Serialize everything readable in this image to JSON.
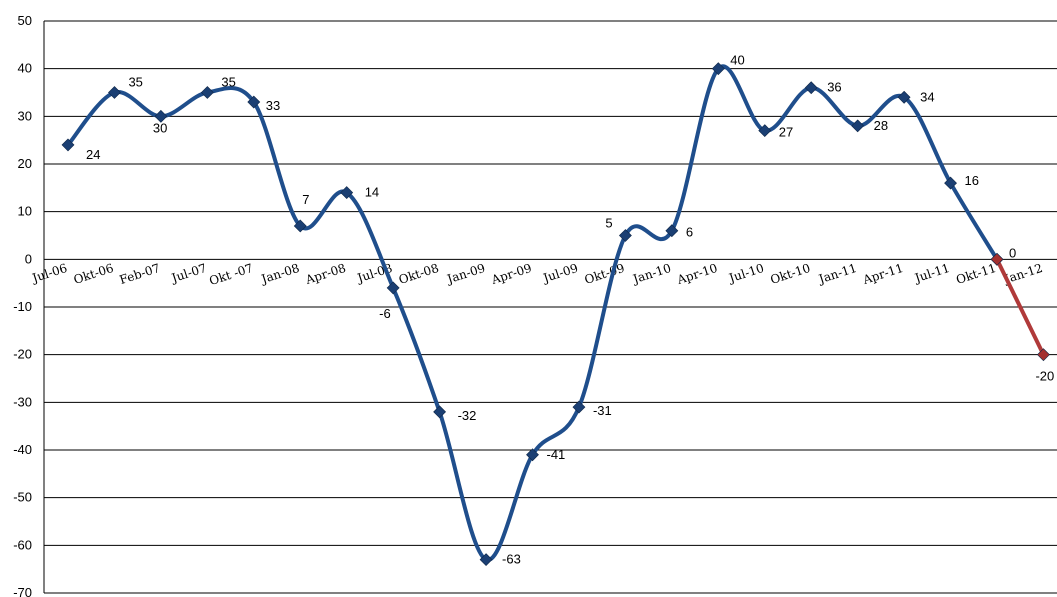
{
  "chart_data": {
    "type": "line",
    "title": "",
    "xlabel": "",
    "ylabel": "",
    "ylim": [
      -70,
      50
    ],
    "yticks": [
      50,
      40,
      30,
      20,
      10,
      0,
      -10,
      -20,
      -30,
      -40,
      -50,
      -60,
      -70
    ],
    "grid": "horizontal",
    "categories": [
      "Jul-06",
      "Okt-06",
      "Feb-07",
      "Jul-07",
      "Okt -07",
      "Jan-08",
      "Apr-08",
      "Jul-08",
      "Okt-08",
      "Jan-09",
      "Apr-09",
      "Jul-09",
      "Okt-09",
      "Jan-10",
      "Apr-10",
      "Jul-10",
      "Okt-10",
      "Jan-11",
      "Apr-11",
      "Jul-11",
      "Okt-11",
      "Jan-12"
    ],
    "series": [
      {
        "color": "#1f4e8c",
        "marker_color": "#1b3f73",
        "values": [
          24,
          35,
          30,
          35,
          33,
          7,
          14,
          -6,
          -32,
          -63,
          -41,
          -31,
          5,
          6,
          40,
          27,
          36,
          28,
          34,
          16,
          0,
          null
        ],
        "labels": [
          "24",
          "35",
          "30",
          "35",
          "33",
          "7",
          "14",
          "-6",
          "-32",
          "-63",
          "-41",
          "-31",
          "5",
          "6",
          "40",
          "27",
          "36",
          "28",
          "34",
          "16",
          "",
          ""
        ]
      },
      {
        "color": "#b03a3a",
        "marker_color": "#a33030",
        "values": [
          null,
          null,
          null,
          null,
          null,
          null,
          null,
          null,
          null,
          null,
          null,
          null,
          null,
          null,
          null,
          null,
          null,
          null,
          null,
          null,
          0,
          -20
        ],
        "labels": [
          "",
          "",
          "",
          "",
          "",
          "",
          "",
          "",
          "",
          "",
          "",
          "",
          "",
          "",
          "",
          "",
          "",
          "",
          "",
          "",
          "0",
          "-20"
        ]
      }
    ]
  }
}
